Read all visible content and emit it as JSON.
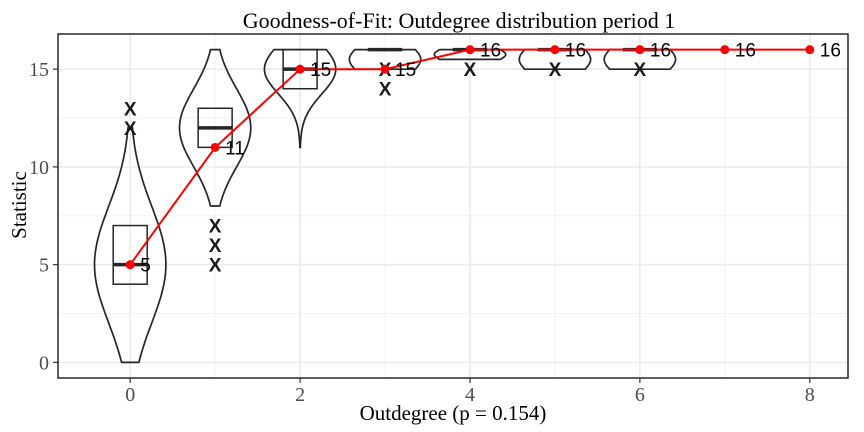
{
  "chart_data": {
    "type": "violin",
    "title": "Goodness-of-Fit: Outdegree distribution period 1",
    "xlabel": "Outdegree (p = 0.154)",
    "ylabel": "Statistic",
    "xlim": [
      -0.85,
      8.45
    ],
    "ylim": [
      -0.8,
      16.8
    ],
    "x_ticks": [
      0,
      2,
      4,
      6,
      8
    ],
    "y_ticks": [
      0,
      5,
      10,
      15
    ],
    "grid": true,
    "simulated_distributions": [
      {
        "x": 0,
        "min": 0,
        "max": 12,
        "q1": 4,
        "median": 5,
        "q3": 7,
        "outliers": [
          12,
          13
        ]
      },
      {
        "x": 1,
        "min": 8,
        "max": 16,
        "q1": 11,
        "median": 12,
        "q3": 13,
        "outliers": [
          5,
          6,
          7
        ]
      },
      {
        "x": 2,
        "min": 11,
        "max": 16,
        "q1": 14,
        "median": 15,
        "q3": 16,
        "outliers": []
      },
      {
        "x": 3,
        "min": 15,
        "max": 16,
        "q1": 16,
        "median": 16,
        "q3": 16,
        "outliers": [
          14,
          15
        ]
      },
      {
        "x": 4,
        "min": 15.5,
        "max": 16,
        "q1": 16,
        "median": 16,
        "q3": 16,
        "outliers": [
          15
        ]
      },
      {
        "x": 5,
        "min": 15,
        "max": 16,
        "q1": 16,
        "median": 16,
        "q3": 16,
        "outliers": [
          15
        ]
      },
      {
        "x": 6,
        "min": 15,
        "max": 16,
        "q1": 16,
        "median": 16,
        "q3": 16,
        "outliers": [
          15
        ]
      }
    ],
    "series": [
      {
        "values": [
          5,
          11,
          15,
          15,
          16,
          16,
          16,
          16,
          16
        ],
        "color": "#ff0000"
      }
    ],
    "x": [
      0,
      1,
      2,
      3,
      4,
      5,
      6,
      7,
      8
    ],
    "data_labels": [
      "5",
      "11",
      "15",
      "15",
      "16",
      "16",
      "16",
      "16",
      "16"
    ],
    "outlier_marker": "X"
  }
}
